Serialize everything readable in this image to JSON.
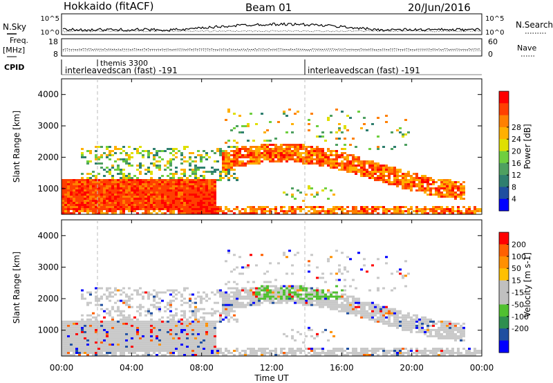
{
  "header": {
    "station": "Hokkaido (fitACF)",
    "beam": "Beam 01",
    "date": "20/Jun/2016"
  },
  "side_labels": {
    "nsky": "N.Sky",
    "freq_top": "Freq.",
    "freq_unit": "[MHz]",
    "cpid": "CPID",
    "nsearch": "N.Search",
    "nave": "Nave"
  },
  "small_axes": {
    "nsky_ticks": [
      "10^5",
      "10^0"
    ],
    "nsearch_ticks": [
      "10^5",
      "10^0"
    ],
    "freq_ticks": [
      "18",
      "8"
    ],
    "nave_ticks": [
      "60",
      "0"
    ]
  },
  "cpid_labels": {
    "scan1": "interleavedscan (fast) -191",
    "scan2": "interleavedscan (fast) -191",
    "themis": "themis 3300"
  },
  "colors": {
    "power": [
      "#0000ff",
      "#1f4fa0",
      "#2f7f6f",
      "#4ea060",
      "#6fcf3f",
      "#dfdf00",
      "#ffb000",
      "#ff8000",
      "#ff4000",
      "#ff0000"
    ],
    "velocity": [
      "#ff0000",
      "#ff6000",
      "#ff9000",
      "#ffc000",
      "#c0c0c0",
      "#c0c0c0",
      "#50c030",
      "#2f8f4f",
      "#1f4fa0",
      "#0000ff"
    ],
    "gray_scatter": "#c8c8c8"
  },
  "chart_data": [
    {
      "type": "heatmap",
      "title": "",
      "xlabel": "",
      "ylabel": "Slant Range [km]",
      "x_ticks": [
        "00:00",
        "04:00",
        "08:00",
        "12:00",
        "16:00",
        "20:00",
        "00:00"
      ],
      "xlim_hours": [
        0,
        24
      ],
      "y_ticks": [
        1000,
        2000,
        3000,
        4000
      ],
      "ylim": [
        180,
        4500
      ],
      "colorbar": {
        "label": "Power [dB]",
        "ticks": [
          4,
          8,
          12,
          16,
          20,
          24,
          28
        ]
      }
    },
    {
      "type": "heatmap",
      "title": "",
      "xlabel": "Time UT",
      "ylabel": "Slant Range [km]",
      "x_ticks": [
        "00:00",
        "04:00",
        "08:00",
        "12:00",
        "16:00",
        "20:00",
        "00:00"
      ],
      "xlim_hours": [
        0,
        24
      ],
      "y_ticks": [
        1000,
        2000,
        3000,
        4000
      ],
      "ylim": [
        180,
        4500
      ],
      "colorbar": {
        "label": "Velocity [m s-1]",
        "ticks": [
          200,
          100,
          50,
          15,
          -15,
          -50,
          -100,
          -200
        ]
      }
    }
  ]
}
